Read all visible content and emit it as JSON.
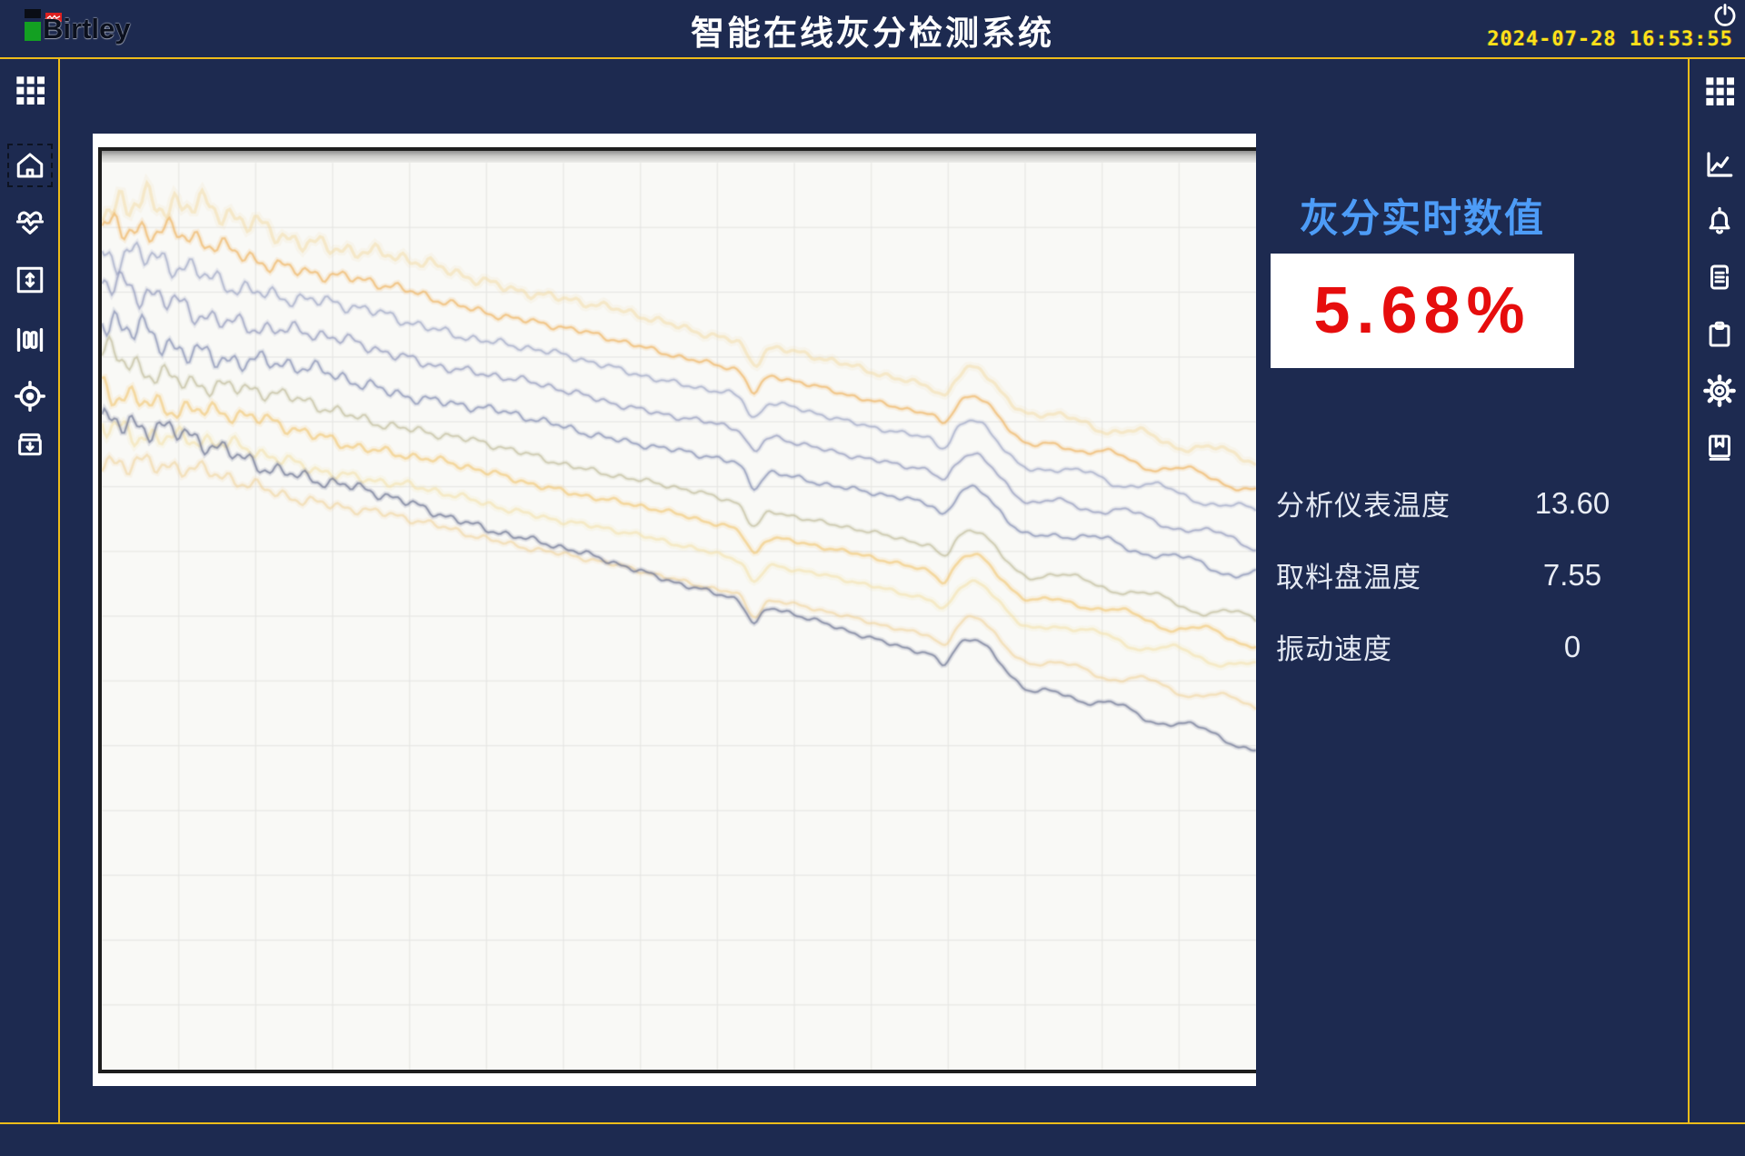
{
  "header": {
    "logo_text": "Birtley",
    "title": "智能在线灰分检测系统",
    "datetime": "2024-07-28 16:53:55"
  },
  "left_sidebar": {
    "items": [
      {
        "icon": "grid-icon"
      },
      {
        "icon": "home-icon",
        "selected": true
      },
      {
        "icon": "heart-pulse-icon"
      },
      {
        "icon": "updown-box-icon"
      },
      {
        "icon": "gate-bars-icon"
      },
      {
        "icon": "target-icon"
      },
      {
        "icon": "archive-down-icon"
      }
    ]
  },
  "right_sidebar": {
    "items": [
      {
        "icon": "grid-icon"
      },
      {
        "icon": "trend-chart-icon"
      },
      {
        "icon": "bell-icon"
      },
      {
        "icon": "report-icon"
      },
      {
        "icon": "clipboard-icon"
      },
      {
        "icon": "gear-icon"
      },
      {
        "icon": "book-icon"
      }
    ]
  },
  "ash_panel": {
    "heading": "灰分实时数值",
    "value": "5.68%",
    "readings": [
      {
        "label": "分析仪表温度",
        "value": "13.60"
      },
      {
        "label": "取料盘温度",
        "value": "7.55"
      },
      {
        "label": "振动速度",
        "value": "0"
      }
    ]
  },
  "colors": {
    "background_navy": "#1d2a50",
    "accent_yellow_line": "#eebc1a",
    "clock_yellow": "#ffe11a",
    "heading_blue": "#4d9cf7",
    "value_red": "#e60d0d",
    "plot_background": "#f9f9f6"
  },
  "chart_data": {
    "type": "line",
    "title": "",
    "description": "Unlabeled multi-channel trend traces drifting downward from upper-left to mid-right; heavy noise at left, sharp glitch notch at ~56% width, hump at ~76% width; no axis ticks, labels or legend visible",
    "grid": true,
    "grid_cols": 15,
    "grid_rows": 14,
    "grid_color": "#e3e3e1",
    "plot_bg": "#f9f9f6",
    "x_axis": {
      "labels_visible": false
    },
    "y_axis": {
      "labels_visible": false
    },
    "features": {
      "glitch_x_frac": 0.565,
      "bump_x_frac": 0.757
    },
    "series": [
      {
        "name": "trace-1",
        "color": "#f2d9a0",
        "start_frac": 0.03,
        "end_frac": 0.33,
        "amp": 1.45,
        "width": 3.4,
        "opacity": 0.45
      },
      {
        "name": "trace-2",
        "color": "#eeb25c",
        "start_frac": 0.065,
        "end_frac": 0.36,
        "amp": 1.05,
        "width": 2.3,
        "opacity": 0.62
      },
      {
        "name": "trace-3",
        "color": "#99a2c2",
        "start_frac": 0.1,
        "end_frac": 0.385,
        "amp": 1.15,
        "width": 2.0,
        "opacity": 0.62
      },
      {
        "name": "trace-4",
        "color": "#8c95ba",
        "start_frac": 0.14,
        "end_frac": 0.42,
        "amp": 1.15,
        "width": 2.0,
        "opacity": 0.62
      },
      {
        "name": "trace-5",
        "color": "#7d87ae",
        "start_frac": 0.182,
        "end_frac": 0.455,
        "amp": 1.25,
        "width": 2.0,
        "opacity": 0.62
      },
      {
        "name": "trace-6",
        "color": "#b3ae85",
        "start_frac": 0.215,
        "end_frac": 0.505,
        "amp": 1.0,
        "width": 2.0,
        "opacity": 0.5
      },
      {
        "name": "trace-7",
        "color": "#f1c26a",
        "start_frac": 0.248,
        "end_frac": 0.53,
        "amp": 0.95,
        "width": 2.7,
        "opacity": 0.55
      },
      {
        "name": "trace-8",
        "color": "#f4e0a6",
        "start_frac": 0.285,
        "end_frac": 0.558,
        "amp": 0.9,
        "width": 3.0,
        "opacity": 0.5
      },
      {
        "name": "trace-9",
        "color": "#edcc8c",
        "start_frac": 0.32,
        "end_frac": 0.6,
        "amp": 0.85,
        "width": 2.6,
        "opacity": 0.45
      },
      {
        "name": "trace-10",
        "color": "#6e7694",
        "start_frac": 0.28,
        "end_frac": 0.645,
        "amp": 1.05,
        "width": 2.1,
        "opacity": 0.68
      }
    ]
  }
}
